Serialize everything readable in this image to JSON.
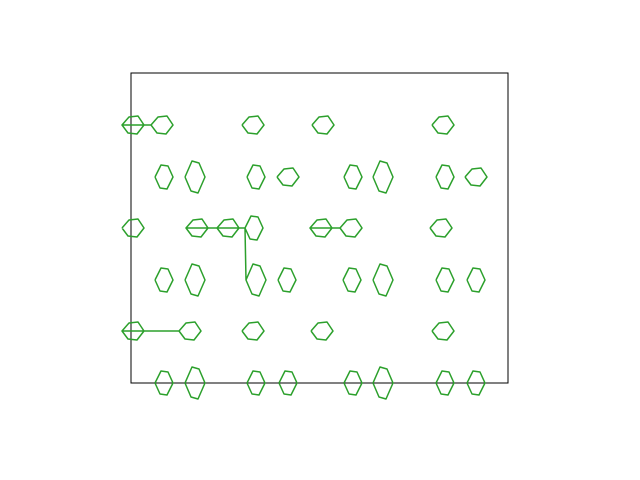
{
  "chart_data": {
    "type": "line",
    "color": "#2ca02c",
    "xlim": [
      0,
      377
    ],
    "ylim": [
      0,
      310
    ],
    "frame": true,
    "x": [
      -9,
      -2,
      7,
      13,
      6,
      -3,
      -9,
      20,
      27,
      36,
      42,
      35,
      26,
      20,
      null,
      111,
      118,
      127,
      133,
      126,
      117,
      111,
      null,
      181,
      188,
      197,
      203,
      196,
      187,
      181,
      null,
      301,
      308,
      317,
      323,
      316,
      307,
      301,
      null,
      24,
      30,
      37,
      42,
      36,
      29,
      24,
      null,
      54,
      61,
      68,
      74,
      67,
      60,
      54,
      null,
      116,
      122,
      129,
      134,
      128,
      121,
      116,
      null,
      146,
      153,
      162,
      168,
      161,
      152,
      146,
      null,
      213,
      219,
      226,
      231,
      225,
      218,
      213,
      null,
      242,
      249,
      256,
      262,
      255,
      248,
      242,
      null,
      305,
      311,
      318,
      323,
      317,
      310,
      305,
      null,
      334,
      341,
      350,
      356,
      349,
      340,
      334,
      null,
      -9,
      -2,
      7,
      13,
      6,
      -3,
      -9,
      null,
      55,
      62,
      71,
      77,
      70,
      61,
      55,
      86,
      93,
      102,
      108,
      101,
      92,
      86,
      114,
      120,
      127,
      132,
      126,
      119,
      114,
      115,
      122,
      129,
      135,
      128,
      121,
      115,
      null,
      179,
      186,
      195,
      201,
      194,
      185,
      179,
      209,
      216,
      225,
      231,
      224,
      215,
      209,
      null,
      299,
      306,
      315,
      321,
      314,
      305,
      299,
      null,
      24,
      30,
      37,
      42,
      36,
      29,
      24,
      null,
      54,
      61,
      68,
      74,
      67,
      60,
      54,
      null,
      147,
      153,
      160,
      165,
      159,
      152,
      147,
      null,
      212,
      218,
      225,
      230,
      224,
      217,
      212,
      null,
      242,
      249,
      256,
      262,
      255,
      248,
      242,
      null,
      305,
      311,
      318,
      323,
      317,
      310,
      305,
      null,
      336,
      342,
      349,
      354,
      348,
      341,
      336,
      null,
      -9,
      -2,
      7,
      13,
      6,
      -3,
      -9,
      48,
      55,
      64,
      70,
      63,
      54,
      48,
      null,
      111,
      118,
      127,
      133,
      126,
      117,
      111,
      null,
      180,
      187,
      196,
      202,
      195,
      186,
      180,
      null,
      301,
      308,
      317,
      323,
      316,
      307,
      301,
      null,
      24,
      30,
      37,
      42,
      36,
      29,
      24,
      null,
      54,
      61,
      68,
      74,
      67,
      60,
      54,
      null,
      116,
      122,
      129,
      134,
      128,
      121,
      116,
      null,
      148,
      154,
      161,
      166,
      160,
      153,
      148,
      null,
      213,
      219,
      226,
      231,
      225,
      218,
      213,
      null,
      242,
      249,
      256,
      262,
      255,
      248,
      242,
      null,
      305,
      311,
      318,
      323,
      317,
      310,
      305,
      null,
      336,
      342,
      349,
      354,
      348,
      341,
      336
    ],
    "y": [
      258,
      266,
      267,
      258,
      249,
      250,
      258,
      258,
      266,
      267,
      258,
      249,
      250,
      258,
      null,
      258,
      266,
      267,
      258,
      249,
      250,
      258,
      null,
      258,
      266,
      267,
      258,
      249,
      250,
      258,
      null,
      258,
      266,
      267,
      258,
      249,
      250,
      258,
      null,
      206,
      218,
      217,
      206,
      194,
      195,
      206,
      null,
      206,
      222,
      220,
      206,
      190,
      192,
      206,
      null,
      206,
      218,
      217,
      206,
      194,
      195,
      206,
      null,
      206,
      214,
      215,
      206,
      197,
      198,
      206,
      null,
      206,
      218,
      217,
      206,
      194,
      195,
      206,
      null,
      206,
      222,
      220,
      206,
      190,
      192,
      206,
      null,
      206,
      218,
      217,
      206,
      194,
      195,
      206,
      null,
      206,
      214,
      215,
      206,
      197,
      198,
      206,
      null,
      155,
      163,
      164,
      155,
      146,
      147,
      155,
      null,
      155,
      163,
      164,
      155,
      146,
      147,
      155,
      155,
      163,
      164,
      155,
      146,
      147,
      155,
      155,
      167,
      166,
      155,
      143,
      144,
      155,
      103,
      119,
      117,
      103,
      87,
      89,
      103,
      null,
      155,
      163,
      164,
      155,
      146,
      147,
      155,
      155,
      163,
      164,
      155,
      146,
      147,
      155,
      null,
      155,
      163,
      164,
      155,
      146,
      147,
      155,
      null,
      103,
      115,
      114,
      103,
      91,
      92,
      103,
      null,
      103,
      119,
      117,
      103,
      87,
      89,
      103,
      null,
      103,
      115,
      114,
      103,
      91,
      92,
      103,
      null,
      103,
      115,
      114,
      103,
      91,
      92,
      103,
      null,
      103,
      119,
      117,
      103,
      87,
      89,
      103,
      null,
      103,
      115,
      114,
      103,
      91,
      92,
      103,
      null,
      103,
      115,
      114,
      103,
      91,
      92,
      103,
      null,
      52,
      60,
      61,
      52,
      43,
      44,
      52,
      52,
      60,
      61,
      52,
      43,
      44,
      52,
      null,
      52,
      60,
      61,
      52,
      43,
      44,
      52,
      null,
      52,
      60,
      61,
      52,
      43,
      44,
      52,
      null,
      52,
      60,
      61,
      52,
      43,
      44,
      52,
      null,
      0,
      12,
      11,
      0,
      -12,
      -11,
      0,
      null,
      0,
      16,
      14,
      0,
      -16,
      -14,
      0,
      null,
      0,
      12,
      11,
      0,
      -12,
      -11,
      0,
      null,
      0,
      12,
      11,
      0,
      -12,
      -11,
      0,
      null,
      0,
      12,
      11,
      0,
      -12,
      -11,
      0,
      null,
      0,
      16,
      14,
      0,
      -16,
      -14,
      0,
      null,
      0,
      12,
      11,
      0,
      -12,
      -11,
      0,
      null,
      0,
      12,
      11,
      0,
      -12,
      -11,
      0
    ]
  }
}
